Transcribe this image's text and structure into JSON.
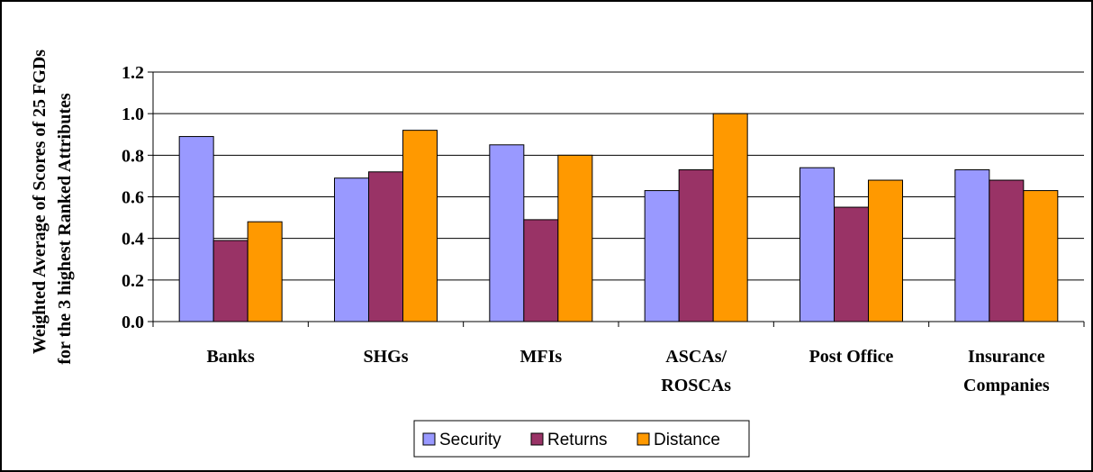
{
  "chart_data": {
    "type": "bar",
    "title": "",
    "ylabel_lines": [
      "Weighted Average of Scores of 25 FGDs",
      "for the 3 highest Ranked Attributes"
    ],
    "xlabel": "",
    "categories": [
      [
        "Banks"
      ],
      [
        "SHGs"
      ],
      [
        "MFIs"
      ],
      [
        "ASCAs/",
        "ROSCAs"
      ],
      [
        "Post Office"
      ],
      [
        "Insurance",
        "Companies"
      ]
    ],
    "series": [
      {
        "name": "Security",
        "color": "#9999ff",
        "values": [
          0.89,
          0.69,
          0.85,
          0.63,
          0.74,
          0.73
        ]
      },
      {
        "name": "Returns",
        "color": "#993366",
        "values": [
          0.39,
          0.72,
          0.49,
          0.73,
          0.55,
          0.68
        ]
      },
      {
        "name": "Distance",
        "color": "#ff9900",
        "values": [
          0.48,
          0.92,
          0.8,
          1.0,
          0.68,
          0.63
        ]
      }
    ],
    "ylim": [
      0,
      1.2
    ],
    "yticks": [
      "0.0",
      "0.2",
      "0.4",
      "0.6",
      "0.8",
      "1.0",
      "1.2"
    ],
    "grid": true,
    "legend_position": "bottom"
  }
}
